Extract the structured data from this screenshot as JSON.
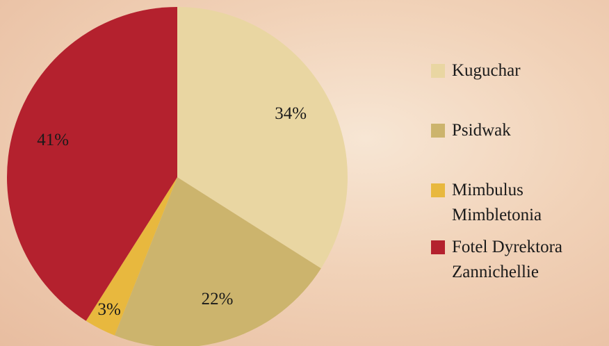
{
  "chart_data": {
    "type": "pie",
    "categories": [
      "Kuguchar",
      "Psidwak",
      "Mimbulus Mimbletonia",
      "Fotel Dyrektora Zannichellie"
    ],
    "values": [
      34,
      22,
      3,
      41
    ],
    "value_labels": [
      "34%",
      "22%",
      "3%",
      "41%"
    ],
    "colors": [
      "#e9d6a2",
      "#ccb46d",
      "#e8b83e",
      "#b4212e"
    ]
  }
}
